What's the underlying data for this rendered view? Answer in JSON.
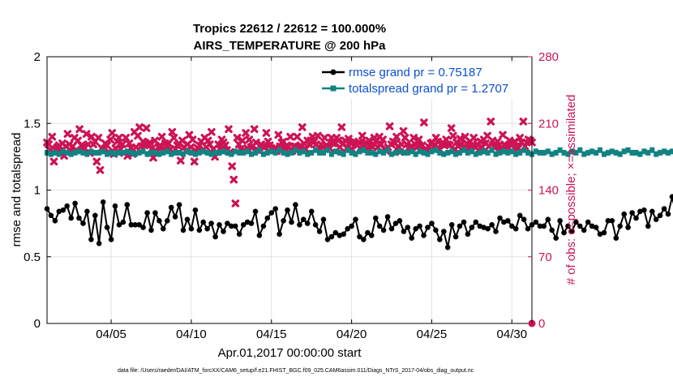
{
  "chart_data": {
    "type": "line",
    "title_line1": "Tropics 22612 / 22612 = 100.000%",
    "title_line2": "AIRS_TEMPERATURE @ 200 hPa",
    "xlabel": "Apr.01,2017 00:00:00 start",
    "ylabel_left": "rmse and totalspread",
    "ylabel_right": "# of obs: o=possible; ×=assimilated",
    "footer": "data file: /Users/raeder/DAI/ATM_forcXX/CAM6_setup/f.e21.FHIST_BGC.f09_025.CAM6assim.011/Diags_NTrS_2017-04/obs_diag_output.nc",
    "x_range": [
      1.0,
      31.25
    ],
    "x_ticks": [
      5,
      10,
      15,
      20,
      25,
      30
    ],
    "x_tick_labels": [
      "04/05",
      "04/10",
      "04/15",
      "04/20",
      "04/25",
      "04/30"
    ],
    "ylim_left": [
      0,
      2
    ],
    "y_ticks_left": [
      0,
      0.5,
      1,
      1.5,
      2
    ],
    "y_tick_labels_left": [
      "0",
      "0.5",
      "1",
      "1.5",
      "2"
    ],
    "ylim_right": [
      0,
      280
    ],
    "y_ticks_right": [
      0,
      70,
      140,
      210,
      280
    ],
    "y_tick_labels_right": [
      "0",
      "70",
      "140",
      "210",
      "280"
    ],
    "colors": {
      "rmse": "#000000",
      "spread": "#128282",
      "obs": "#cc1455",
      "legend_text": "#0a50d2",
      "grid": "#e2e2e2"
    },
    "x_start": 1.0,
    "x_step": 0.25,
    "series": [
      {
        "name": "rmse grand pr = 0.75187",
        "axis": "left",
        "values": [
          0.86,
          0.81,
          0.77,
          0.84,
          0.85,
          0.88,
          0.79,
          0.9,
          0.79,
          0.75,
          0.84,
          0.63,
          0.81,
          0.6,
          0.91,
          0.72,
          0.63,
          0.88,
          0.74,
          0.76,
          0.89,
          0.74,
          0.74,
          0.74,
          0.72,
          0.83,
          0.7,
          0.83,
          0.77,
          0.71,
          0.77,
          0.87,
          0.8,
          0.89,
          0.7,
          0.78,
          0.71,
          0.85,
          0.7,
          0.76,
          0.71,
          0.75,
          0.65,
          0.74,
          0.69,
          0.75,
          0.73,
          0.73,
          0.67,
          0.74,
          0.76,
          0.75,
          0.84,
          0.66,
          0.73,
          0.79,
          0.83,
          0.86,
          0.67,
          0.77,
          0.85,
          0.76,
          0.89,
          0.74,
          0.78,
          0.75,
          0.84,
          0.74,
          0.69,
          0.78,
          0.63,
          0.65,
          0.68,
          0.66,
          0.67,
          0.71,
          0.73,
          0.78,
          0.65,
          0.63,
          0.68,
          0.66,
          0.79,
          0.73,
          0.7,
          0.8,
          0.71,
          0.75,
          0.77,
          0.69,
          0.72,
          0.64,
          0.71,
          0.73,
          0.66,
          0.72,
          0.75,
          0.7,
          0.63,
          0.69,
          0.57,
          0.74,
          0.65,
          0.73,
          0.76,
          0.67,
          0.72,
          0.76,
          0.73,
          0.72,
          0.71,
          0.74,
          0.69,
          0.79,
          0.76,
          0.77,
          0.73,
          0.71,
          0.81,
          0.78,
          0.71,
          0.74,
          0.76,
          0.73,
          0.73,
          0.78,
          0.7,
          0.64,
          0.77,
          0.68,
          0.73,
          0.69,
          0.76,
          0.73,
          0.7,
          0.76,
          0.73,
          0.72,
          0.67,
          0.68,
          0.77,
          0.77,
          0.64,
          0.73,
          0.82,
          0.72,
          0.83,
          0.79,
          0.84,
          0.85,
          0.73,
          0.84,
          0.78,
          0.81,
          0.86,
          0.82,
          0.95,
          0.81,
          0.83,
          0.91,
          0.98,
          0.98
        ]
      },
      {
        "name": "totalspread grand pr = 1.2707",
        "axis": "left",
        "values": [
          1.28,
          1.27,
          1.28,
          1.27,
          1.29,
          1.28,
          1.27,
          1.28,
          1.29,
          1.28,
          1.27,
          1.29,
          1.28,
          1.28,
          1.29,
          1.27,
          1.28,
          1.27,
          1.28,
          1.28,
          1.29,
          1.28,
          1.27,
          1.28,
          1.29,
          1.27,
          1.28,
          1.28,
          1.27,
          1.28,
          1.29,
          1.27,
          1.28,
          1.28,
          1.27,
          1.29,
          1.28,
          1.27,
          1.28,
          1.29,
          1.28,
          1.27,
          1.28,
          1.28,
          1.29,
          1.28,
          1.27,
          1.29,
          1.28,
          1.28,
          1.29,
          1.27,
          1.28,
          1.3,
          1.27,
          1.28,
          1.29,
          1.28,
          1.3,
          1.28,
          1.27,
          1.28,
          1.3,
          1.28,
          1.29,
          1.27,
          1.28,
          1.3,
          1.28,
          1.28,
          1.3,
          1.27,
          1.29,
          1.28,
          1.27,
          1.3,
          1.28,
          1.27,
          1.29,
          1.3,
          1.28,
          1.28,
          1.27,
          1.29,
          1.28,
          1.3,
          1.27,
          1.28,
          1.29,
          1.28,
          1.28,
          1.29,
          1.27,
          1.29,
          1.28,
          1.27,
          1.29,
          1.3,
          1.28,
          1.27,
          1.28,
          1.29,
          1.27,
          1.28,
          1.3,
          1.28,
          1.29,
          1.27,
          1.28,
          1.29,
          1.28,
          1.3,
          1.27,
          1.28,
          1.29,
          1.28,
          1.29,
          1.27,
          1.28,
          1.3,
          1.28,
          1.27,
          1.29,
          1.28,
          1.28,
          1.29,
          1.27,
          1.28,
          1.3,
          1.28,
          1.27,
          1.29,
          1.28,
          1.3,
          1.27,
          1.28,
          1.29,
          1.28,
          1.3,
          1.27,
          1.28,
          1.29,
          1.28,
          1.27,
          1.29,
          1.3,
          1.28,
          1.28,
          1.27,
          1.29,
          1.28,
          1.3,
          1.27,
          1.28,
          1.29,
          1.28,
          1.29,
          1.27,
          1.28,
          1.28,
          1.29,
          1.28,
          1.27,
          1.28,
          1.28,
          1.27
        ]
      },
      {
        "name": "# of obs assimilated",
        "axis": "right",
        "marker": "x",
        "values": [
          190,
          188,
          182,
          196,
          170,
          183,
          185,
          187,
          179,
          189,
          176,
          186,
          199,
          188,
          181,
          186,
          195,
          182,
          192,
          204,
          187,
          185,
          184,
          199,
          188,
          179,
          196,
          188,
          191,
          170,
          195,
          161,
          184,
          182,
          189,
          187,
          180,
          193,
          200,
          178,
          184,
          191,
          195,
          183,
          188,
          179,
          195,
          176,
          189,
          184,
          178,
          201,
          185,
          197,
          206,
          186,
          191,
          187,
          205,
          188,
          190,
          183,
          174,
          192,
          180,
          185,
          187,
          196,
          183,
          189,
          185,
          189,
          183,
          201,
          195,
          183,
          187,
          189,
          171,
          192,
          185,
          181,
          188,
          198,
          185,
          193,
          170,
          181,
          184,
          187,
          191,
          182,
          195,
          185,
          192,
          188,
          201,
          183,
          175,
          180,
          188,
          183,
          193,
          190,
          187,
          182,
          204,
          180,
          165,
          151,
          126,
          195,
          188,
          183,
          192,
          182,
          200,
          184,
          193,
          185,
          186,
          204,
          190,
          182,
          181,
          188,
          186,
          185,
          200,
          191,
          187,
          184,
          182,
          184,
          181,
          198,
          186,
          190,
          191,
          184,
          187,
          185,
          196,
          181,
          186,
          186,
          196,
          185,
          187,
          206,
          189,
          183,
          192,
          188,
          192,
          196,
          191,
          188,
          197,
          184,
          188,
          185,
          195,
          187,
          186,
          184,
          195,
          189,
          189,
          195,
          192,
          185,
          206,
          189,
          192,
          184,
          194,
          190,
          183,
          191,
          189,
          187,
          190,
          184,
          197,
          188,
          190,
          183,
          192,
          187,
          185,
          195,
          191,
          185,
          196,
          188,
          193,
          183,
          181,
          185,
          207,
          188,
          191,
          189,
          196,
          186,
          180,
          188,
          202,
          195,
          188,
          184,
          185,
          186,
          195,
          188,
          185,
          193,
          186,
          187,
          211,
          183,
          182,
          185,
          189,
          190,
          186,
          195,
          191,
          183,
          188,
          190,
          187,
          193,
          188,
          187,
          205,
          197,
          183,
          190,
          186,
          194,
          188,
          185,
          196,
          189,
          184,
          191,
          186,
          195,
          185,
          188,
          182,
          191,
          185,
          193,
          189,
          197,
          186,
          212,
          192,
          185,
          186,
          191,
          187,
          184,
          198,
          188,
          186,
          185,
          192,
          187,
          189,
          191,
          186,
          184,
          195,
          190,
          212,
          186,
          190,
          193,
          192,
          190
        ]
      },
      {
        "name": "# of obs possible",
        "axis": "right",
        "marker": "o",
        "values": [
          0
        ]
      }
    ]
  }
}
